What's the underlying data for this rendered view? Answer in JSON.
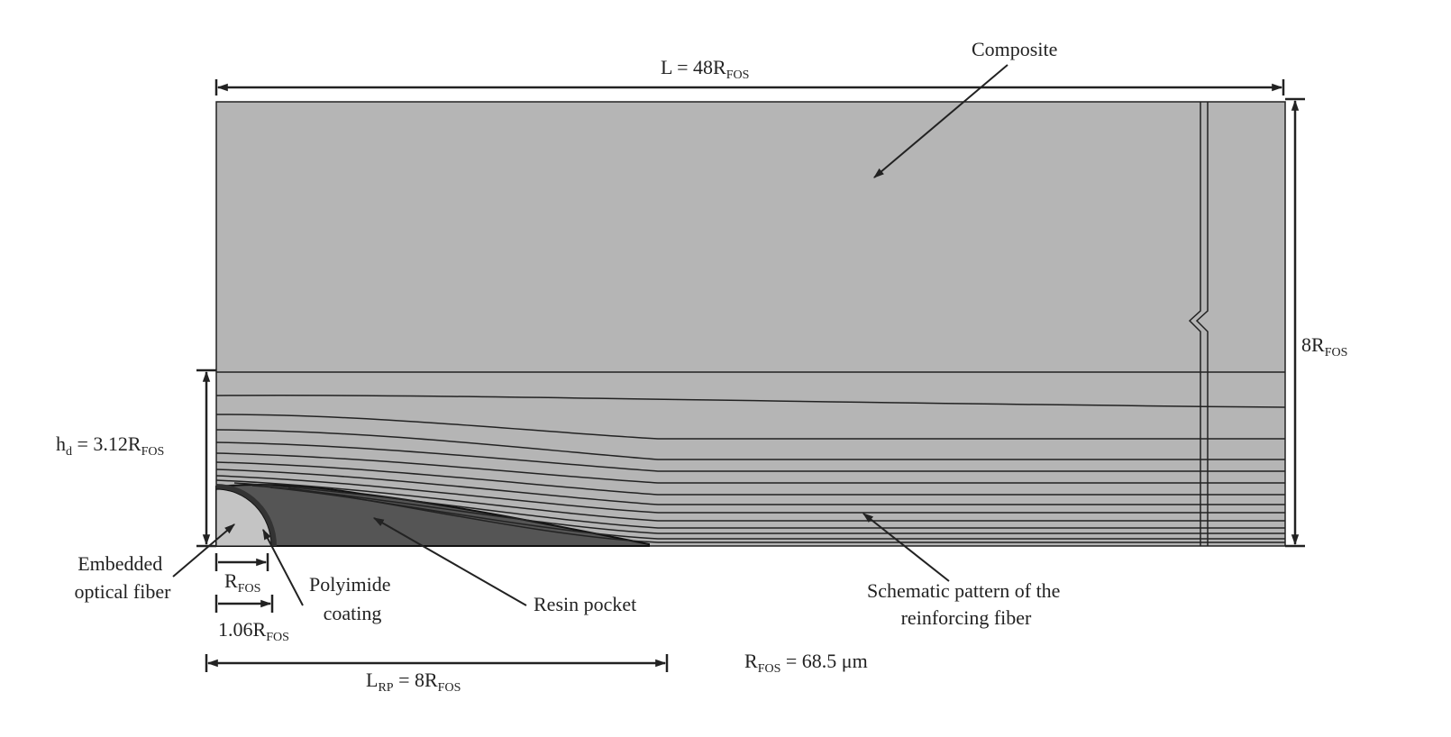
{
  "labels": {
    "length": {
      "prefix": "L = 48R",
      "sub": "FOS"
    },
    "composite": "Composite",
    "height": {
      "prefix": "8R",
      "sub": "FOS"
    },
    "delamination_height": {
      "h": "h",
      "h_sub": "d",
      "mid": " = 3.12R",
      "sub": "FOS"
    },
    "embedded_fiber": [
      "Embedded",
      "optical fiber"
    ],
    "fiber_radius": {
      "prefix": "R",
      "sub": "FOS"
    },
    "coating_radius": {
      "prefix": "1.06R",
      "sub": "FOS"
    },
    "polyimide": [
      "Polyimide",
      "coating"
    ],
    "resin_pocket": "Resin pocket",
    "reinforcing": [
      "Schematic pattern of the",
      "reinforcing fiber"
    ],
    "pocket_length": {
      "prefix": "L",
      "sub1": "RP",
      "mid": " = 8R",
      "sub2": "FOS"
    },
    "rfos_value": {
      "prefix": "R",
      "sub": "FOS",
      "suffix": " = 68.5 μm"
    }
  },
  "colors": {
    "composite": "#b5b5b5",
    "resin": "#555555",
    "fiber": "#c4c4c4",
    "lines": "#222222"
  }
}
